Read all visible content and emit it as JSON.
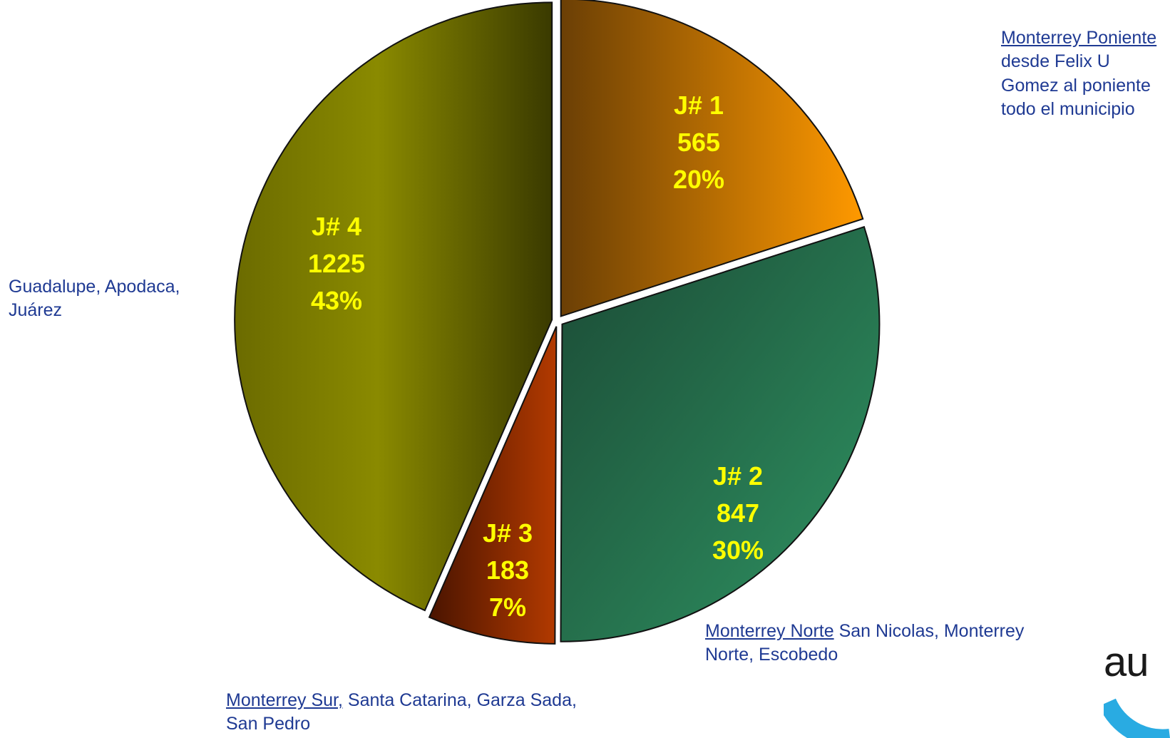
{
  "chart_data": {
    "type": "pie",
    "slices": [
      {
        "id": "J# 1",
        "label": "J# 1",
        "value": 565,
        "percent_label": "20%",
        "colors": [
          "#6b3f05",
          "#ff9900"
        ]
      },
      {
        "id": "J# 2",
        "label": "J# 2",
        "value": 847,
        "percent_label": "30%",
        "colors": [
          "#1b4a35",
          "#2f9463"
        ]
      },
      {
        "id": "J# 3",
        "label": "J# 3",
        "value": 183,
        "percent_label": "7%",
        "colors": [
          "#4a1400",
          "#b33a00"
        ]
      },
      {
        "id": "J# 4",
        "label": "J# 4",
        "value": 1225,
        "percent_label": "43%",
        "colors": [
          "#3a3a00",
          "#8a8a00"
        ]
      }
    ],
    "annotations": [
      {
        "slice": "J# 1",
        "underlined": "Monterrey Poniente",
        "text": " desde Felix U Gomez al poniente todo el municipio"
      },
      {
        "slice": "J# 2",
        "underlined": "Monterrey Norte",
        "text": " San Nicolas, Monterrey Norte, Escobedo"
      },
      {
        "slice": "J# 3",
        "underlined": "Monterrey Sur,",
        "text": " Santa Catarina, Garza Sada,  San Pedro"
      },
      {
        "slice": "J# 4",
        "underlined": "",
        "text": "Guadalupe, Apodaca, Juárez"
      }
    ]
  },
  "logo": {
    "text": "au",
    "colors": [
      "#1a1a1a",
      "#29abe2"
    ]
  }
}
